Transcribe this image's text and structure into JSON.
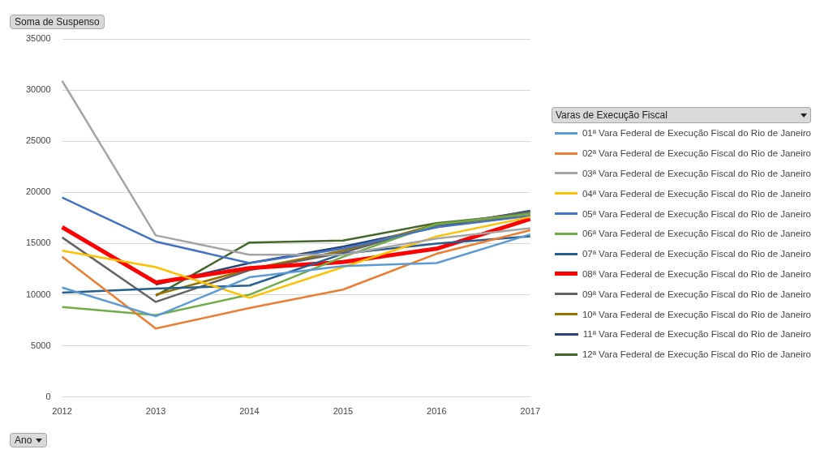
{
  "chart_data": {
    "type": "line",
    "ylabel": "Soma de Suspenso",
    "xlabel": "Ano",
    "legend_title": "Varas de Execução Fiscal",
    "categories": [
      "2012",
      "2013",
      "2014",
      "2015",
      "2016",
      "2017"
    ],
    "ylim": [
      0,
      35000
    ],
    "yticks": [
      0,
      5000,
      10000,
      15000,
      20000,
      25000,
      30000,
      35000
    ],
    "grid": "y",
    "legend": "right",
    "marker": "none",
    "line_style": "solid",
    "series": [
      {
        "name": "01ª Vara Federal de Execução Fiscal do Rio de Janeiro",
        "color": "#5b9bd5",
        "values": [
          10700,
          7900,
          11700,
          12800,
          13100,
          15900
        ]
      },
      {
        "name": "02ª Vara Federal de Execução Fiscal do Rio de Janeiro",
        "color": "#ed7d31",
        "values": [
          13700,
          6700,
          8700,
          10500,
          14000,
          16300
        ]
      },
      {
        "name": "03ª Vara Federal de Execução Fiscal do Rio de Janeiro",
        "color": "#a5a5a5",
        "values": [
          30900,
          15800,
          13900,
          13900,
          15500,
          16500
        ]
      },
      {
        "name": "04ª Vara Federal de Execução Fiscal do Rio de Janeiro",
        "color": "#ffc000",
        "values": [
          14300,
          12700,
          9700,
          12700,
          15700,
          17600
        ]
      },
      {
        "name": "05ª Vara Federal de Execução Fiscal do Rio de Janeiro",
        "color": "#4472c4",
        "values": [
          19500,
          15200,
          13100,
          14500,
          16600,
          17700
        ]
      },
      {
        "name": "06ª Vara Federal de Execução Fiscal do Rio de Janeiro",
        "color": "#70ad47",
        "values": [
          8800,
          8000,
          10000,
          13700,
          16900,
          17900
        ]
      },
      {
        "name": "07ª Vara Federal de Execução Fiscal do Rio de Janeiro",
        "color": "#255e91",
        "values": [
          10200,
          10600,
          10900,
          14000,
          15000,
          15700
        ]
      },
      {
        "name": "08ª Vara Federal de Execução Fiscal do Rio de Janeiro",
        "color": "#ff0000",
        "values": [
          16600,
          11200,
          12600,
          13200,
          14500,
          17400
        ]
      },
      {
        "name": "09ª Vara Federal de Execução Fiscal do Rio de Janeiro",
        "color": "#636363",
        "values": [
          15600,
          9300,
          12400,
          14100,
          16800,
          18100
        ]
      },
      {
        "name": "10ª Vara Federal de Execução Fiscal do Rio de Janeiro",
        "color": "#997300",
        "values": [
          null,
          10000,
          12500,
          14300,
          16900,
          17700
        ]
      },
      {
        "name": "11ª Vara Federal de Execução Fiscal do Rio de Janeiro",
        "color": "#264478",
        "values": [
          null,
          11000,
          13100,
          14700,
          16600,
          18200
        ]
      },
      {
        "name": "12ª Vara Federal de Execução Fiscal do Rio de Janeiro",
        "color": "#43682b",
        "values": [
          null,
          9900,
          15100,
          15300,
          17000,
          17900
        ]
      }
    ]
  }
}
